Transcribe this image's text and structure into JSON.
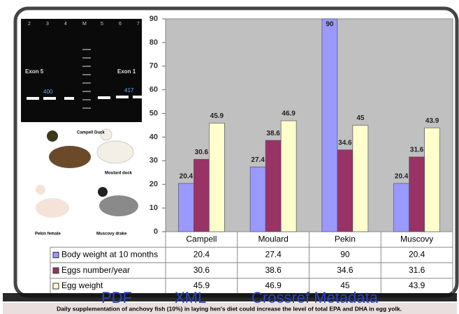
{
  "chart_data": {
    "type": "bar",
    "categories": [
      "Campell",
      "Moulard",
      "Pekin",
      "Muscovy"
    ],
    "series": [
      {
        "name": "Body weight at 10 months",
        "color": "#9999ff",
        "values": [
          20.4,
          27.4,
          90,
          20.4
        ]
      },
      {
        "name": "Eggs number/year",
        "color": "#993366",
        "values": [
          30.6,
          38.6,
          34.6,
          31.6
        ]
      },
      {
        "name": "Egg weight",
        "color": "#ffffcc",
        "values": [
          45.9,
          46.9,
          45,
          43.9
        ]
      }
    ],
    "ylim": [
      0,
      90
    ],
    "yticks": [
      0,
      10,
      20,
      30,
      40,
      50,
      60,
      70,
      80,
      90
    ],
    "grid": false
  },
  "inset": {
    "lanes": [
      "2",
      "3",
      "4",
      "M",
      "5",
      "6",
      "7"
    ],
    "exon_left": "Exon 5",
    "exon_right": "Exon 1",
    "band_left": "400",
    "band_right": "417",
    "ducks": [
      "Campell Duck",
      "Moulard duck",
      "Pekin female",
      "Muscovy drake"
    ]
  },
  "watermark": [
    "PDF",
    "XML",
    "Crossref Metadata"
  ],
  "caption": "Daily supplementation of anchovy fish (10%) in laying hen's diet could increase the level of total EPA and DHA in egg yolk."
}
